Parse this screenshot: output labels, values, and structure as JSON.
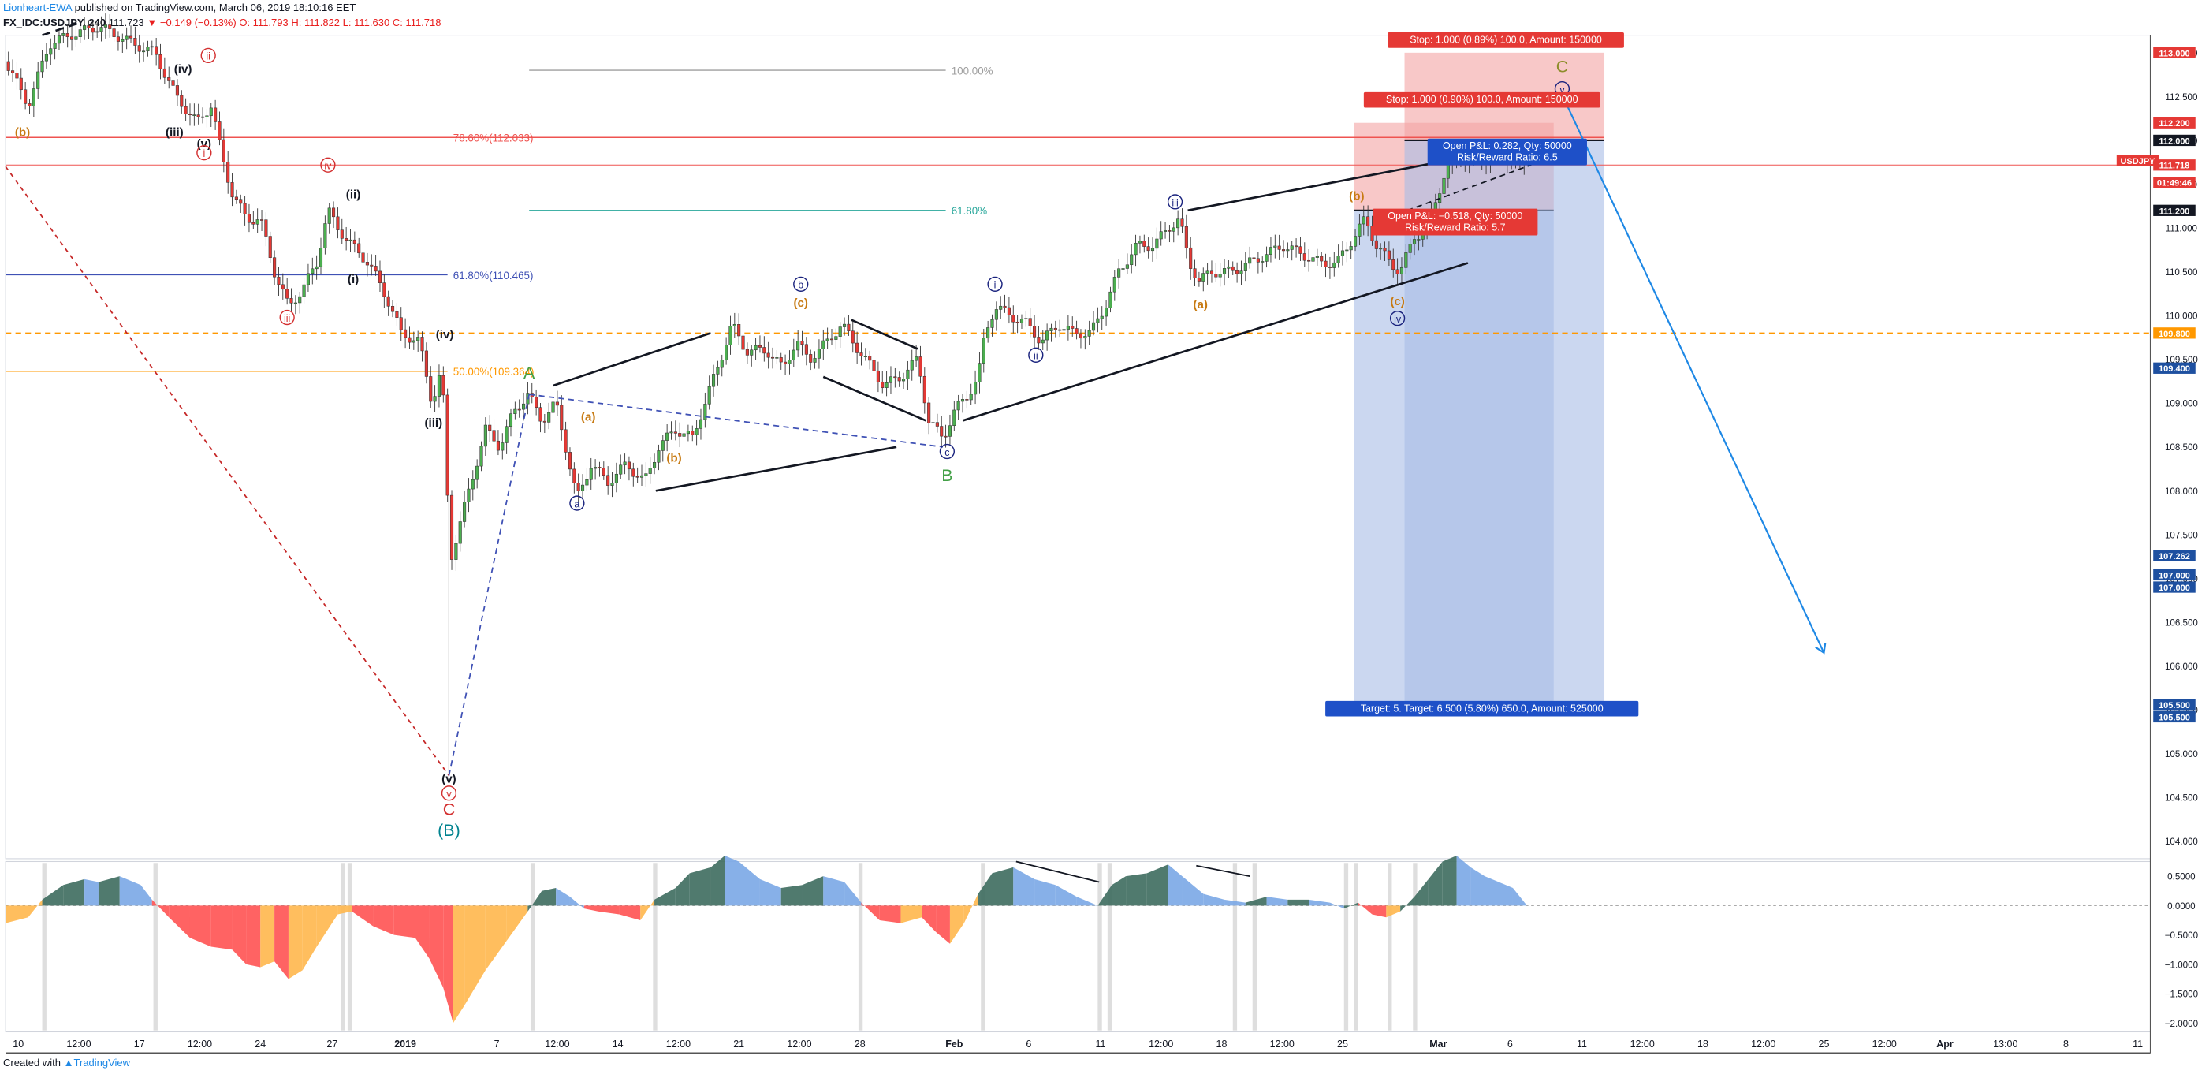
{
  "header": {
    "author": "Lionheart-EWA",
    "published": " published on TradingView.com, March 06, 2019 18:10:16 EET"
  },
  "ohlc": {
    "symbol": "FX_IDC:USDJPY, 240",
    "last": "111.723",
    "change": "▼ −0.149 (−0.13%)",
    "o": "O: 111.793",
    "h": "H: 111.822",
    "l": "L: 111.630",
    "c": "C: 111.718"
  },
  "footer": {
    "prefix": "Created with",
    "brand": "TradingView"
  },
  "colors": {
    "up": "#4caf50",
    "down": "#e53935",
    "wave_red": "#d32f2f",
    "wave_blue": "#1a237e",
    "wave_orange": "#c77a12",
    "wave_green": "#43a047",
    "fib_red": "#ef5350",
    "fib_blue": "#3f51b5",
    "fib_orange": "#ff9800",
    "fib_teal": "#26a69a",
    "stop_fill": "#f4a3a3",
    "target_fill": "#a9bde6",
    "osc_green": "#3d6b5e",
    "osc_blue": "#7aa7e6",
    "osc_red": "#ff5252",
    "osc_orange": "#ffb74d"
  },
  "chart_data": {
    "type": "candlestick",
    "symbol": "FX_IDC:USDJPY",
    "timeframe": "240",
    "ylim": [
      103.8,
      113.2
    ],
    "price_ticks": [
      "113.000",
      "112.500",
      "112.000",
      "111.500",
      "111.000",
      "110.500",
      "110.000",
      "109.500",
      "109.000",
      "108.500",
      "108.000",
      "107.500",
      "107.000",
      "106.500",
      "106.000",
      "105.500",
      "105.000",
      "104.500",
      "104.000"
    ],
    "price_tick_values": [
      113.0,
      112.5,
      112.0,
      111.5,
      111.0,
      110.5,
      110.0,
      109.5,
      109.0,
      108.5,
      108.0,
      107.5,
      107.0,
      106.5,
      106.0,
      105.5,
      105.0,
      104.5,
      104.0
    ],
    "time_labels": [
      "10",
      "12:00",
      "17",
      "12:00",
      "24",
      "27",
      "2019",
      "7",
      "12:00",
      "14",
      "12:00",
      "21",
      "12:00",
      "28",
      "Feb",
      "6",
      "11",
      "12:00",
      "18",
      "12:00",
      "25",
      "Mar",
      "6",
      "11",
      "12:00",
      "18",
      "12:00",
      "25",
      "12:00",
      "Apr",
      "13:00",
      "8",
      "11"
    ],
    "time_label_x": [
      13,
      56,
      99,
      142,
      185,
      236,
      288,
      353,
      396,
      439,
      482,
      525,
      568,
      611,
      678,
      731,
      782,
      825,
      868,
      911,
      954,
      1022,
      1073,
      1124,
      1167,
      1210,
      1253,
      1296,
      1339,
      1382,
      1425,
      1468,
      1519
    ],
    "price_markers": [
      {
        "label": "113.000",
        "value": 113.0,
        "color": "#e53935"
      },
      {
        "label": "112.200",
        "value": 112.2,
        "color": "#e53935"
      },
      {
        "label": "112.000",
        "value": 112.0,
        "color": "#131722"
      },
      {
        "label": "USDJPY",
        "value": 111.77,
        "color": "#e53935"
      },
      {
        "label": "111.718",
        "value": 111.718,
        "color": "#e53935"
      },
      {
        "label": "01:49:46",
        "value": 111.52,
        "color": "#e53935"
      },
      {
        "label": "111.200",
        "value": 111.2,
        "color": "#131722"
      },
      {
        "label": "109.800",
        "value": 109.8,
        "color": "#ff9800"
      },
      {
        "label": "109.400",
        "value": 109.4,
        "color": "#1e50a0"
      },
      {
        "label": "107.262",
        "value": 107.262,
        "color": "#1e50a0"
      },
      {
        "label": "107.000",
        "value": 107.04,
        "color": "#1e50a0"
      },
      {
        "label": "107.000",
        "value": 106.9,
        "color": "#1e50a0"
      },
      {
        "label": "105.500",
        "value": 105.56,
        "color": "#1e50a0"
      },
      {
        "label": "105.500",
        "value": 105.42,
        "color": "#1e50a0"
      }
    ],
    "fib_levels": [
      {
        "label": "100.00%",
        "value": 112.8,
        "color": "#9e9e9e",
        "x0": 376,
        "x1": 672,
        "lx": 676
      },
      {
        "label": "78.60%(112.033)",
        "value": 112.033,
        "color": "#ef5350",
        "x0": 4,
        "x1": 1140,
        "lx": 322
      },
      {
        "label": "61.80%",
        "value": 111.2,
        "color": "#26a69a",
        "x0": 376,
        "x1": 672,
        "lx": 676
      },
      {
        "label": "61.80%(110.465)",
        "value": 110.465,
        "color": "#3f51b5",
        "x0": 4,
        "x1": 318,
        "lx": 322
      },
      {
        "label": "50.00%(109.364)",
        "value": 109.364,
        "color": "#ff9800",
        "x0": 4,
        "x1": 318,
        "lx": 322
      }
    ],
    "current_price": 111.718,
    "orange_dashed_level": 109.8,
    "swing_path": [
      [
        4,
        112.9
      ],
      [
        20,
        112.4
      ],
      [
        35,
        113.1
      ],
      [
        50,
        113.2
      ],
      [
        70,
        113.3
      ],
      [
        95,
        113.1
      ],
      [
        110,
        113.0
      ],
      [
        125,
        112.5
      ],
      [
        140,
        112.2
      ],
      [
        150,
        112.4
      ],
      [
        158,
        111.8
      ],
      [
        165,
        111.4
      ],
      [
        175,
        111.1
      ],
      [
        185,
        111.1
      ],
      [
        195,
        110.5
      ],
      [
        205,
        110.1
      ],
      [
        215,
        110.3
      ],
      [
        225,
        110.6
      ],
      [
        233,
        111.2
      ],
      [
        240,
        111.0
      ],
      [
        250,
        110.8
      ],
      [
        262,
        110.6
      ],
      [
        275,
        110.2
      ],
      [
        285,
        109.8
      ],
      [
        298,
        109.7
      ],
      [
        307,
        109.0
      ],
      [
        314,
        109.4
      ],
      [
        320,
        107.2
      ],
      [
        328,
        107.7
      ],
      [
        335,
        108.1
      ],
      [
        345,
        108.7
      ],
      [
        355,
        108.5
      ],
      [
        365,
        108.9
      ],
      [
        375,
        109.1
      ],
      [
        385,
        108.8
      ],
      [
        395,
        109.0
      ],
      [
        402,
        108.5
      ],
      [
        410,
        107.9
      ],
      [
        420,
        108.3
      ],
      [
        432,
        108.1
      ],
      [
        445,
        108.3
      ],
      [
        458,
        108.1
      ],
      [
        468,
        108.5
      ],
      [
        480,
        108.7
      ],
      [
        492,
        108.6
      ],
      [
        503,
        109.1
      ],
      [
        512,
        109.5
      ],
      [
        520,
        109.9
      ],
      [
        530,
        109.6
      ],
      [
        545,
        109.6
      ],
      [
        556,
        109.4
      ],
      [
        566,
        109.7
      ],
      [
        575,
        109.5
      ],
      [
        588,
        109.7
      ],
      [
        598,
        109.9
      ],
      [
        606,
        109.7
      ],
      [
        615,
        109.5
      ],
      [
        628,
        109.2
      ],
      [
        640,
        109.3
      ],
      [
        652,
        109.5
      ],
      [
        660,
        108.8
      ],
      [
        670,
        108.6
      ],
      [
        678,
        108.9
      ],
      [
        688,
        109.1
      ],
      [
        695,
        109.3
      ],
      [
        700,
        109.8
      ],
      [
        707,
        110.1
      ],
      [
        718,
        110.0
      ],
      [
        730,
        109.9
      ],
      [
        740,
        109.7
      ],
      [
        752,
        109.9
      ],
      [
        762,
        109.8
      ],
      [
        775,
        109.8
      ],
      [
        785,
        110.1
      ],
      [
        795,
        110.5
      ],
      [
        808,
        110.8
      ],
      [
        820,
        110.8
      ],
      [
        830,
        111.0
      ],
      [
        838,
        111.1
      ],
      [
        845,
        110.6
      ],
      [
        852,
        110.4
      ],
      [
        862,
        110.5
      ],
      [
        875,
        110.5
      ],
      [
        888,
        110.6
      ],
      [
        900,
        110.7
      ],
      [
        912,
        110.8
      ],
      [
        925,
        110.7
      ],
      [
        938,
        110.6
      ],
      [
        950,
        110.6
      ],
      [
        962,
        110.9
      ],
      [
        970,
        111.1
      ],
      [
        978,
        110.8
      ],
      [
        988,
        110.6
      ],
      [
        995,
        110.5
      ],
      [
        1005,
        110.9
      ],
      [
        1015,
        111.0
      ],
      [
        1020,
        111.3
      ],
      [
        1028,
        111.7
      ],
      [
        1038,
        111.8
      ],
      [
        1050,
        111.8
      ],
      [
        1062,
        111.8
      ],
      [
        1075,
        111.8
      ],
      [
        1085,
        111.7
      ]
    ],
    "wave_labels": [
      {
        "t": "(b)",
        "x": 16,
        "p": 112.05,
        "c": "#c77a12"
      },
      {
        "t": "(iv)",
        "x": 130,
        "p": 112.77,
        "c": "#131722"
      },
      {
        "t": "(iii)",
        "x": 124,
        "p": 112.05,
        "c": "#131722"
      },
      {
        "t": "(v)",
        "x": 145,
        "p": 111.92,
        "c": "#131722"
      },
      {
        "t": "ii",
        "x": 148,
        "p": 112.92,
        "c": "#d32f2f",
        "circle": true
      },
      {
        "t": "i",
        "x": 145,
        "p": 111.81,
        "c": "#d32f2f",
        "circle": true
      },
      {
        "t": "iv",
        "x": 233,
        "p": 111.67,
        "c": "#d32f2f",
        "circle": true
      },
      {
        "t": "(ii)",
        "x": 251,
        "p": 111.34,
        "c": "#131722"
      },
      {
        "t": "(i)",
        "x": 251,
        "p": 110.37,
        "c": "#131722"
      },
      {
        "t": "iii",
        "x": 204,
        "p": 109.93,
        "c": "#d32f2f",
        "circle": true
      },
      {
        "t": "(iv)",
        "x": 316,
        "p": 109.74,
        "c": "#131722"
      },
      {
        "t": "(iii)",
        "x": 308,
        "p": 108.73,
        "c": "#131722"
      },
      {
        "t": "A",
        "x": 376,
        "p": 109.28,
        "c": "#43a047",
        "big": true
      },
      {
        "t": "(a)",
        "x": 418,
        "p": 108.8,
        "c": "#c77a12"
      },
      {
        "t": "(b)",
        "x": 479,
        "p": 108.33,
        "c": "#c77a12"
      },
      {
        "t": "a",
        "x": 410,
        "p": 107.81,
        "c": "#1a237e",
        "circle": true
      },
      {
        "t": "b",
        "x": 569,
        "p": 110.31,
        "c": "#1a237e",
        "circle": true
      },
      {
        "t": "(c)",
        "x": 569,
        "p": 110.1,
        "c": "#c77a12"
      },
      {
        "t": "c",
        "x": 673,
        "p": 108.4,
        "c": "#1a237e",
        "circle": true
      },
      {
        "t": "B",
        "x": 673,
        "p": 108.11,
        "c": "#43a047",
        "big": true
      },
      {
        "t": "i",
        "x": 707,
        "p": 110.31,
        "c": "#1a237e",
        "circle": true
      },
      {
        "t": "ii",
        "x": 736,
        "p": 109.5,
        "c": "#1a237e",
        "circle": true
      },
      {
        "t": "iii",
        "x": 835,
        "p": 111.25,
        "c": "#1a237e",
        "circle": true
      },
      {
        "t": "(a)",
        "x": 853,
        "p": 110.08,
        "c": "#c77a12"
      },
      {
        "t": "(b)",
        "x": 964,
        "p": 111.32,
        "c": "#c77a12"
      },
      {
        "t": "(c)",
        "x": 993,
        "p": 110.12,
        "c": "#c77a12"
      },
      {
        "t": "iv",
        "x": 993,
        "p": 109.92,
        "c": "#1a237e",
        "circle": true
      },
      {
        "t": "C",
        "x": 1110,
        "p": 112.78,
        "c": "#8d8d2a",
        "big": true
      },
      {
        "t": "v",
        "x": 1110,
        "p": 112.54,
        "c": "#1a237e",
        "circle": true
      },
      {
        "t": "(v)",
        "x": 319,
        "p": 104.67,
        "c": "#131722"
      },
      {
        "t": "v",
        "x": 319,
        "p": 104.5,
        "c": "#d32f2f",
        "circle": true
      },
      {
        "t": "C",
        "x": 319,
        "p": 104.3,
        "c": "#d32f2f",
        "big": true
      },
      {
        "t": "(B)",
        "x": 319,
        "p": 104.06,
        "c": "#00838f",
        "big": true
      }
    ],
    "trend_lines": [
      {
        "p": [
          [
            393,
            109.2
          ],
          [
            505,
            109.8
          ]
        ],
        "c": "#131722",
        "w": 1.5
      },
      {
        "p": [
          [
            466,
            108.0
          ],
          [
            637,
            108.5
          ]
        ],
        "c": "#131722",
        "w": 1.5
      },
      {
        "p": [
          [
            605,
            109.95
          ],
          [
            652,
            109.62
          ]
        ],
        "c": "#131722",
        "w": 1.5
      },
      {
        "p": [
          [
            585,
            109.3
          ],
          [
            658,
            108.8
          ]
        ],
        "c": "#131722",
        "w": 1.5
      },
      {
        "p": [
          [
            684,
            108.8
          ],
          [
            1043,
            110.6
          ]
        ],
        "c": "#131722",
        "w": 1.5
      },
      {
        "p": [
          [
            844,
            111.2
          ],
          [
            1038,
            111.8
          ]
        ],
        "c": "#131722",
        "w": 1.5
      },
      {
        "p": [
          [
            30,
            113.2
          ],
          [
            58,
            113.35
          ]
        ],
        "c": "#131722",
        "w": 1.5,
        "dash": "6,4"
      },
      {
        "p": [
          [
            1000,
            111.2
          ],
          [
            1088,
            111.72
          ]
        ],
        "c": "#131722",
        "w": 1,
        "dash": "4,3"
      },
      {
        "p": [
          [
            4,
            111.7
          ],
          [
            319,
            104.75
          ]
        ],
        "c": "#c62828",
        "w": 1,
        "dash": "3,3"
      },
      {
        "p": [
          [
            319,
            104.75
          ],
          [
            376,
            109.1
          ]
        ],
        "c": "#3f51b5",
        "w": 1,
        "dash": "4,3"
      },
      {
        "p": [
          [
            376,
            109.1
          ],
          [
            670,
            108.5
          ]
        ],
        "c": "#3f51b5",
        "w": 1,
        "dash": "4,3"
      },
      {
        "p": [
          [
            1112,
            112.45
          ],
          [
            1296,
            106.15
          ]
        ],
        "c": "#1e88e5",
        "w": 1.2,
        "arrow": true
      }
    ],
    "positions": [
      {
        "x0": 962,
        "x1": 1104,
        "entry": 111.2,
        "stop": 112.2,
        "target": 105.5,
        "stop_label": "Stop: 1.000 (0.90%) 100.0, Amount: 150000",
        "pnl_label": "Open P&L: −0.518, Qty: 50000",
        "rr_label": "Risk/Reward Ratio: 5.7"
      },
      {
        "x0": 998,
        "x1": 1140,
        "entry": 112.0,
        "stop": 113.0,
        "target": 105.5,
        "stop_label": "Stop: 1.000 (0.89%) 100.0, Amount: 150000",
        "pnl_label": "Open P&L: 0.282, Qty: 50000",
        "rr_label": "Risk/Reward Ratio: 6.5",
        "target_label": "Target: 5.  Target: 6.500 (5.80%) 650.0, Amount: 525000"
      }
    ],
    "oscillator": {
      "ticks": [
        "0.5000",
        "0.0000",
        "−0.5000",
        "−1.0000",
        "−1.5000",
        "−2.0000"
      ],
      "tick_values": [
        0.5,
        0.0,
        -0.5,
        -1.0,
        -1.5,
        -2.0
      ],
      "ylim": [
        -2.15,
        0.75
      ],
      "x": [
        4,
        20,
        30,
        45,
        60,
        70,
        85,
        100,
        108,
        120,
        135,
        150,
        165,
        175,
        185,
        195,
        205,
        215,
        225,
        240,
        250,
        265,
        280,
        295,
        305,
        315,
        322,
        330,
        345,
        360,
        375,
        385,
        395,
        405,
        415,
        425,
        440,
        455,
        465,
        480,
        490,
        505,
        515,
        525,
        540,
        555,
        570,
        585,
        600,
        612,
        625,
        640,
        655,
        665,
        675,
        685,
        695,
        705,
        720,
        735,
        750,
        765,
        780,
        790,
        800,
        815,
        830,
        840,
        855,
        870,
        885,
        900,
        915,
        930,
        945,
        955,
        965,
        975,
        985,
        995,
        1005,
        1015,
        1025,
        1035,
        1045,
        1055,
        1065,
        1075,
        1085
      ],
      "y": [
        -0.3,
        -0.2,
        0.1,
        0.35,
        0.45,
        0.4,
        0.5,
        0.35,
        0.1,
        -0.2,
        -0.55,
        -0.7,
        -0.75,
        -1.0,
        -1.05,
        -0.95,
        -1.25,
        -1.1,
        -0.7,
        -0.15,
        -0.1,
        -0.35,
        -0.5,
        -0.55,
        -0.9,
        -1.4,
        -2.0,
        -1.7,
        -1.1,
        -0.6,
        -0.1,
        0.25,
        0.3,
        0.15,
        -0.05,
        -0.1,
        -0.15,
        -0.25,
        0.1,
        0.3,
        0.55,
        0.65,
        0.85,
        0.75,
        0.45,
        0.3,
        0.35,
        0.5,
        0.4,
        0.05,
        -0.25,
        -0.3,
        -0.2,
        -0.45,
        -0.65,
        -0.3,
        0.2,
        0.55,
        0.65,
        0.45,
        0.35,
        0.15,
        0.0,
        0.35,
        0.5,
        0.55,
        0.7,
        0.5,
        0.2,
        0.1,
        0.05,
        0.15,
        0.1,
        0.1,
        0.05,
        -0.05,
        0.05,
        -0.15,
        -0.2,
        -0.1,
        0.15,
        0.45,
        0.75,
        0.85,
        0.65,
        0.5,
        0.4,
        0.3,
        0.0
      ]
    }
  }
}
